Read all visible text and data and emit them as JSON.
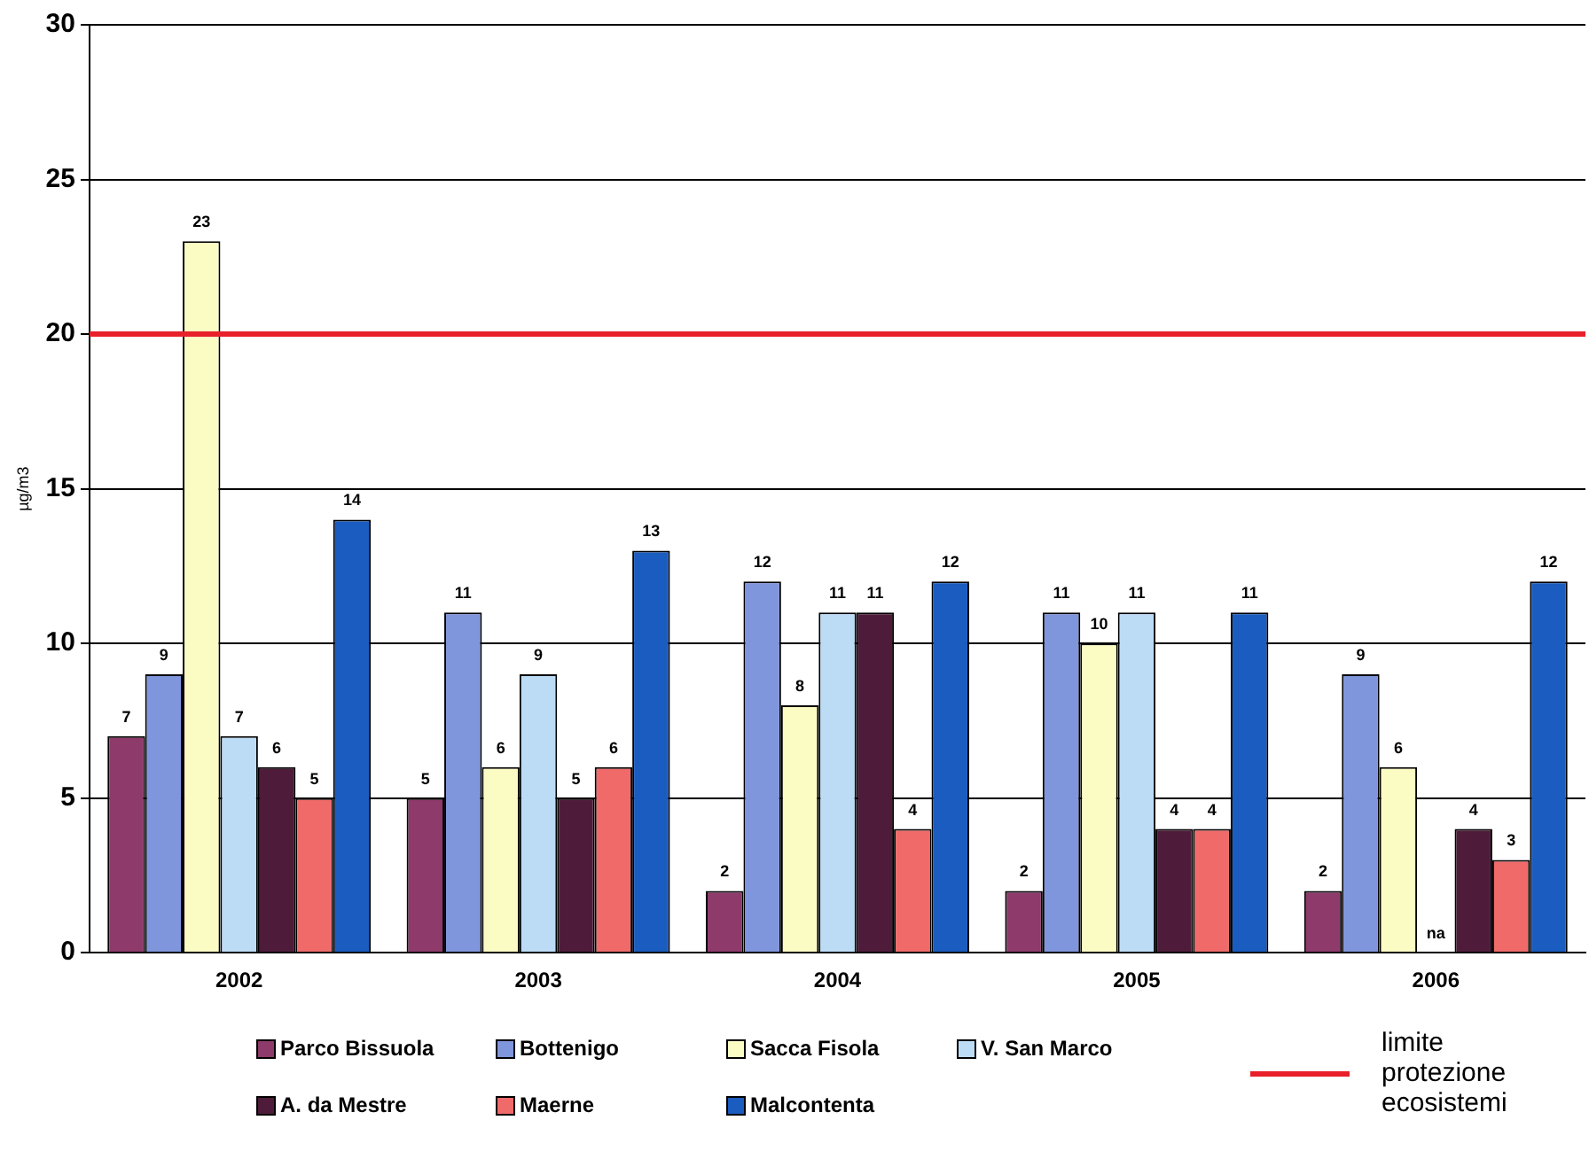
{
  "chart_data": {
    "type": "bar",
    "ylabel": "µg/m3",
    "categories": [
      "2002",
      "2003",
      "2004",
      "2005",
      "2006"
    ],
    "series": [
      {
        "name": "Parco Bissuola",
        "color": "#8e3a6a",
        "values": [
          7,
          5,
          2,
          2,
          2
        ],
        "value_labels": [
          "7",
          "5",
          "2",
          "2",
          "2"
        ]
      },
      {
        "name": "Bottenigo",
        "color": "#7f95dc",
        "values": [
          9,
          11,
          12,
          11,
          9
        ],
        "value_labels": [
          "9",
          "11",
          "12",
          "11",
          "9"
        ]
      },
      {
        "name": "Sacca Fisola",
        "color": "#fbfbc4",
        "values": [
          23,
          6,
          8,
          10,
          6
        ],
        "value_labels": [
          "23",
          "6",
          "8",
          "10",
          "6"
        ]
      },
      {
        "name": "V. San Marco",
        "color": "#bcdcf6",
        "values": [
          7,
          9,
          11,
          11,
          null
        ],
        "value_labels": [
          "7",
          "9",
          "11",
          "11",
          "na"
        ]
      },
      {
        "name": "A. da Mestre",
        "color": "#4e1c3a",
        "values": [
          6,
          5,
          11,
          4,
          4
        ],
        "value_labels": [
          "6",
          "5",
          "11",
          "4",
          "4"
        ]
      },
      {
        "name": "Maerne",
        "color": "#f06a6a",
        "values": [
          5,
          6,
          4,
          4,
          3
        ],
        "value_labels": [
          "5",
          "6",
          "4",
          "4",
          "3"
        ]
      },
      {
        "name": "Malcontenta",
        "color": "#1a5cbf",
        "values": [
          14,
          13,
          12,
          11,
          12
        ],
        "value_labels": [
          "14",
          "13",
          "12",
          "11",
          "12"
        ]
      }
    ],
    "ylim": [
      0,
      30
    ],
    "yticks": [
      0,
      5,
      10,
      15,
      20,
      25,
      30
    ],
    "grid": "y",
    "legend": "bottom",
    "ref_lines": [
      {
        "axis": "y",
        "value": 20,
        "label": "limite protezione ecosistemi",
        "color": "#e8202a"
      }
    ]
  }
}
